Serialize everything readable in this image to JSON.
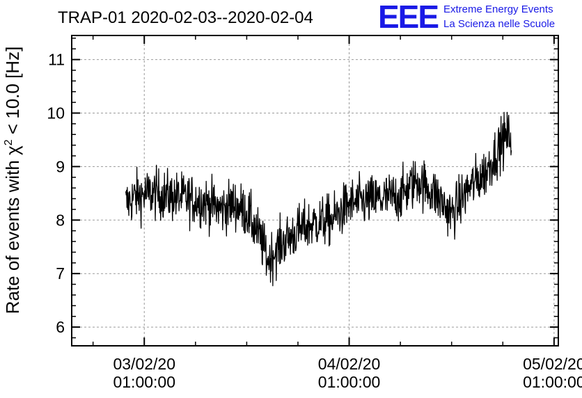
{
  "chart_data": {
    "type": "line",
    "title": "TRAP-01 2020-02-03--2020-02-04",
    "ylabel": {
      "prefix": "Rate of events with ",
      "chi": "χ",
      "sup": "2",
      "suffix": " < 10.0 [Hz]"
    },
    "xlabel": "",
    "xlim": [
      "2020-02-02T16:30:00",
      "2020-02-05T01:30:00"
    ],
    "ylim": [
      5.65,
      11.45
    ],
    "x_ticks": [
      {
        "date": "03/02/20",
        "time": "01:00:00",
        "x": "2020-02-03T01:00:00"
      },
      {
        "date": "04/02/20",
        "time": "01:00:00",
        "x": "2020-02-04T01:00:00"
      },
      {
        "date": "05/02/20",
        "time": "01:00:00",
        "x": "2020-02-05T01:00:00"
      }
    ],
    "y_ticks": [
      6,
      7,
      8,
      9,
      10,
      11
    ],
    "grid": true,
    "line_color": "#000000",
    "series": [
      {
        "x": [
          "2020-02-02T22:50:00",
          "2020-02-03T00:00:00",
          "2020-02-03T02:00:00",
          "2020-02-03T04:00:00",
          "2020-02-03T06:00:00",
          "2020-02-03T08:00:00",
          "2020-02-03T10:00:00",
          "2020-02-03T11:30:00",
          "2020-02-03T13:00:00",
          "2020-02-03T14:30:00",
          "2020-02-03T15:30:00",
          "2020-02-03T17:00:00",
          "2020-02-03T19:00:00",
          "2020-02-03T21:00:00",
          "2020-02-03T23:00:00",
          "2020-02-04T01:00:00",
          "2020-02-04T03:00:00",
          "2020-02-04T05:00:00",
          "2020-02-04T07:00:00",
          "2020-02-04T09:00:00",
          "2020-02-04T11:00:00",
          "2020-02-04T13:00:00",
          "2020-02-04T15:00:00",
          "2020-02-04T17:00:00",
          "2020-02-04T18:00:00",
          "2020-02-04T19:00:00",
          "2020-02-04T20:00:00"
        ],
        "y": [
          8.3,
          8.45,
          8.5,
          8.45,
          8.4,
          8.35,
          8.2,
          8.3,
          8.15,
          7.7,
          7.25,
          7.55,
          7.8,
          7.95,
          8.0,
          8.3,
          8.35,
          8.4,
          8.45,
          8.75,
          8.5,
          8.1,
          8.6,
          8.9,
          9.2,
          9.5,
          9.6
        ],
        "noise_amplitude": 0.45
      }
    ]
  },
  "brand": {
    "logo": "EEE",
    "line1": "Extreme Energy Events",
    "line2": "La Scienza nelle Scuole",
    "color": "#1a1ae6"
  }
}
